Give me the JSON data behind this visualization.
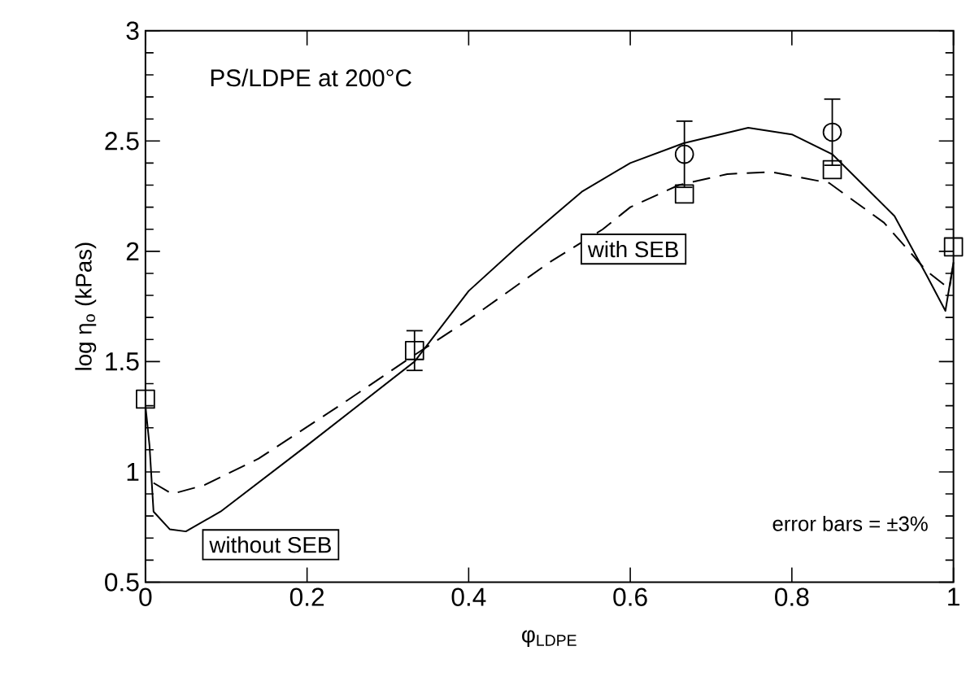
{
  "chart_data": {
    "type": "line",
    "xlabel": "φ$_{LDPE}$",
    "ylabel": "log η$_{o}$ (kPas)",
    "xlim": [
      0,
      1
    ],
    "ylim": [
      0.5,
      3
    ],
    "xticks": [
      0,
      0.2,
      0.4,
      0.6,
      0.8,
      1
    ],
    "yticks": [
      0.5,
      1,
      1.5,
      2,
      2.5,
      3
    ],
    "grid": false,
    "annotations": [
      "PS/LDPE at 200°C",
      "error bars = ±3%",
      "with SEB",
      "without SEB"
    ],
    "series": [
      {
        "line_style": "solid",
        "color": "#000000",
        "marker": "none",
        "x": [
          0,
          0.005,
          0.01,
          0.03,
          0.05,
          0.093,
          0.2,
          0.333,
          0.4,
          0.46,
          0.54,
          0.6,
          0.666,
          0.746,
          0.8,
          0.85,
          0.927,
          0.967,
          0.99,
          1
        ],
        "values": [
          1.3,
          1.12,
          0.82,
          0.74,
          0.73,
          0.82,
          1.12,
          1.5,
          1.82,
          2.02,
          2.27,
          2.4,
          2.49,
          2.56,
          2.53,
          2.44,
          2.16,
          1.89,
          1.73,
          1.95
        ]
      },
      {
        "line_style": "dashed",
        "color": "#000000",
        "marker": "none",
        "x": [
          0.01,
          0.033,
          0.073,
          0.14,
          0.24,
          0.333,
          0.4,
          0.5,
          0.566,
          0.6,
          0.66,
          0.72,
          0.774,
          0.846,
          0.914,
          0.967,
          0.995,
          1
        ],
        "values": [
          0.95,
          0.9,
          0.94,
          1.06,
          1.3,
          1.53,
          1.69,
          1.95,
          2.1,
          2.2,
          2.3,
          2.35,
          2.36,
          2.31,
          2.13,
          1.91,
          1.83,
          1.95
        ]
      },
      {
        "type": "scatter",
        "marker": "circle",
        "color": "#000000",
        "x": [
          0.667,
          0.85
        ],
        "values": [
          2.44,
          2.54
        ],
        "errors": [
          0.15,
          0.15
        ]
      },
      {
        "type": "scatter",
        "marker": "square",
        "color": "#000000",
        "x": [
          0,
          0.333,
          0.667,
          0.85,
          1
        ],
        "values": [
          1.33,
          1.55,
          2.26,
          2.37,
          2.02
        ],
        "errors": [
          null,
          0.09,
          null,
          null,
          null
        ]
      }
    ]
  }
}
